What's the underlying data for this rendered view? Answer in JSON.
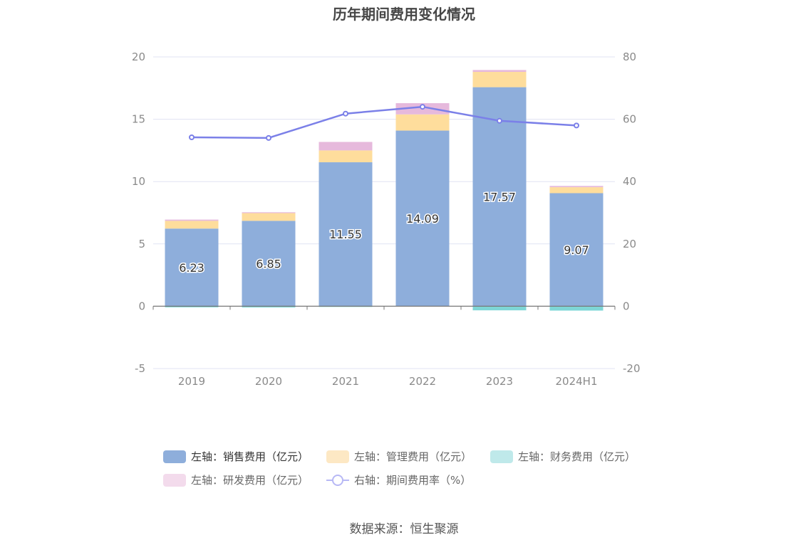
{
  "chart_data": {
    "type": "bar",
    "title": "历年期间费用变化情况",
    "categories": [
      "2019",
      "2020",
      "2021",
      "2022",
      "2023",
      "2024H1"
    ],
    "stacked": true,
    "left_axis": {
      "min": -5,
      "max": 20,
      "ticks": [
        -5,
        0,
        5,
        10,
        15,
        20
      ]
    },
    "right_axis": {
      "min": -20,
      "max": 80,
      "ticks": [
        -20,
        0,
        20,
        40,
        60,
        80
      ]
    },
    "series": [
      {
        "name": "左轴：销售费用（亿元）",
        "axis": "left",
        "type": "bar",
        "color": "#8eaedb",
        "values": [
          6.23,
          6.85,
          11.55,
          14.09,
          17.57,
          9.07
        ],
        "show_labels": true
      },
      {
        "name": "左轴：管理费用（亿元）",
        "axis": "left",
        "type": "bar",
        "color": "#fedd9c",
        "values": [
          0.62,
          0.62,
          0.95,
          1.3,
          1.23,
          0.48
        ]
      },
      {
        "name": "左轴：财务费用（亿元）",
        "axis": "left",
        "type": "bar",
        "color": "#7ed6d6",
        "values": [
          -0.09,
          -0.1,
          -0.03,
          0,
          -0.33,
          -0.35
        ]
      },
      {
        "name": "左轴：研发费用（亿元）",
        "axis": "left",
        "type": "bar",
        "color": "#e6b9dc",
        "values": [
          0.1,
          0.07,
          0.68,
          0.9,
          0.15,
          0.1
        ]
      },
      {
        "name": "右轴：期间费用率（%）",
        "axis": "right",
        "type": "line",
        "color": "#7b80e8",
        "values": [
          54.2,
          54.0,
          61.8,
          64.0,
          59.5,
          58.0
        ]
      }
    ]
  },
  "source": "数据来源：恒生聚源"
}
